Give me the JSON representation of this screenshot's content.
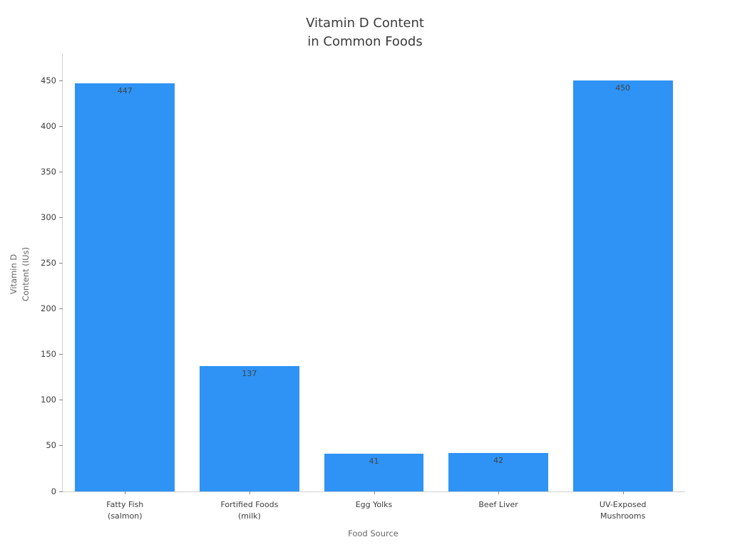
{
  "chart_data": {
    "type": "bar",
    "title": "Vitamin D Content\nin Common Foods",
    "xlabel": "Food Source",
    "ylabel": "Vitamin D\nContent (IUs)",
    "categories": [
      "Fatty Fish\n(salmon)",
      "Fortified Foods\n(milk)",
      "Egg Yolks",
      "Beef Liver",
      "UV-Exposed\nMushrooms"
    ],
    "values": [
      447,
      137,
      41,
      42,
      450
    ],
    "bar_labels": [
      "447",
      "137",
      "41",
      "42",
      "450"
    ],
    "yticks": [
      0,
      50,
      100,
      150,
      200,
      250,
      300,
      350,
      400,
      450
    ],
    "ylim": [
      0,
      480
    ],
    "grid": false,
    "legend": null,
    "colors": {
      "bar": "#2F93F5",
      "title_text": "#3a3a3a",
      "tick_text": "#3d3d3d",
      "axis_title_text": "#666666",
      "value_label_text": "#3f4545",
      "axis_line": "#d0d0d0",
      "tick_mark": "#888888",
      "background": "#ffffff"
    }
  }
}
